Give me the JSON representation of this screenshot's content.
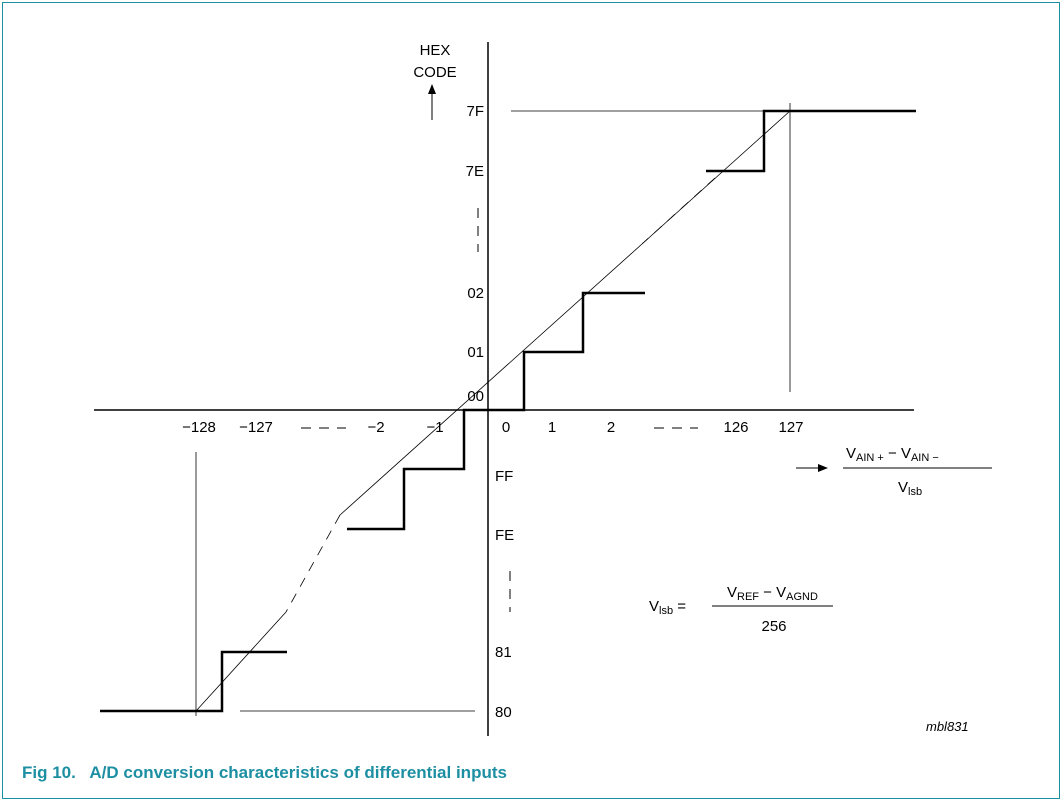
{
  "y_axis": {
    "title_line1": "HEX",
    "title_line2": "CODE"
  },
  "y_labels": [
    "7F",
    "7E",
    "02",
    "01",
    "00",
    "FF",
    "FE",
    "81",
    "80"
  ],
  "x_labels": [
    "−128",
    "−127",
    "−2",
    "−1",
    "0",
    "1",
    "2",
    "126",
    "127"
  ],
  "x_axis_formula": {
    "numerator": {
      "a": "V",
      "a_sub": "AIN +",
      "op": " − ",
      "b": "V",
      "b_sub": "AIN −"
    },
    "denominator": {
      "v": "V",
      "v_sub": "lsb"
    }
  },
  "lsb_formula": {
    "lhs": "V",
    "lhs_sub": "lsb",
    "equals": " =",
    "numerator": {
      "a": "V",
      "a_sub": "REF",
      "op": " − ",
      "b": "V",
      "b_sub": "AGND"
    },
    "denominator": "256"
  },
  "figure_code": "mbl831",
  "caption": {
    "number": "Fig 10.",
    "text": "A/D conversion characteristics of differential inputs"
  }
}
